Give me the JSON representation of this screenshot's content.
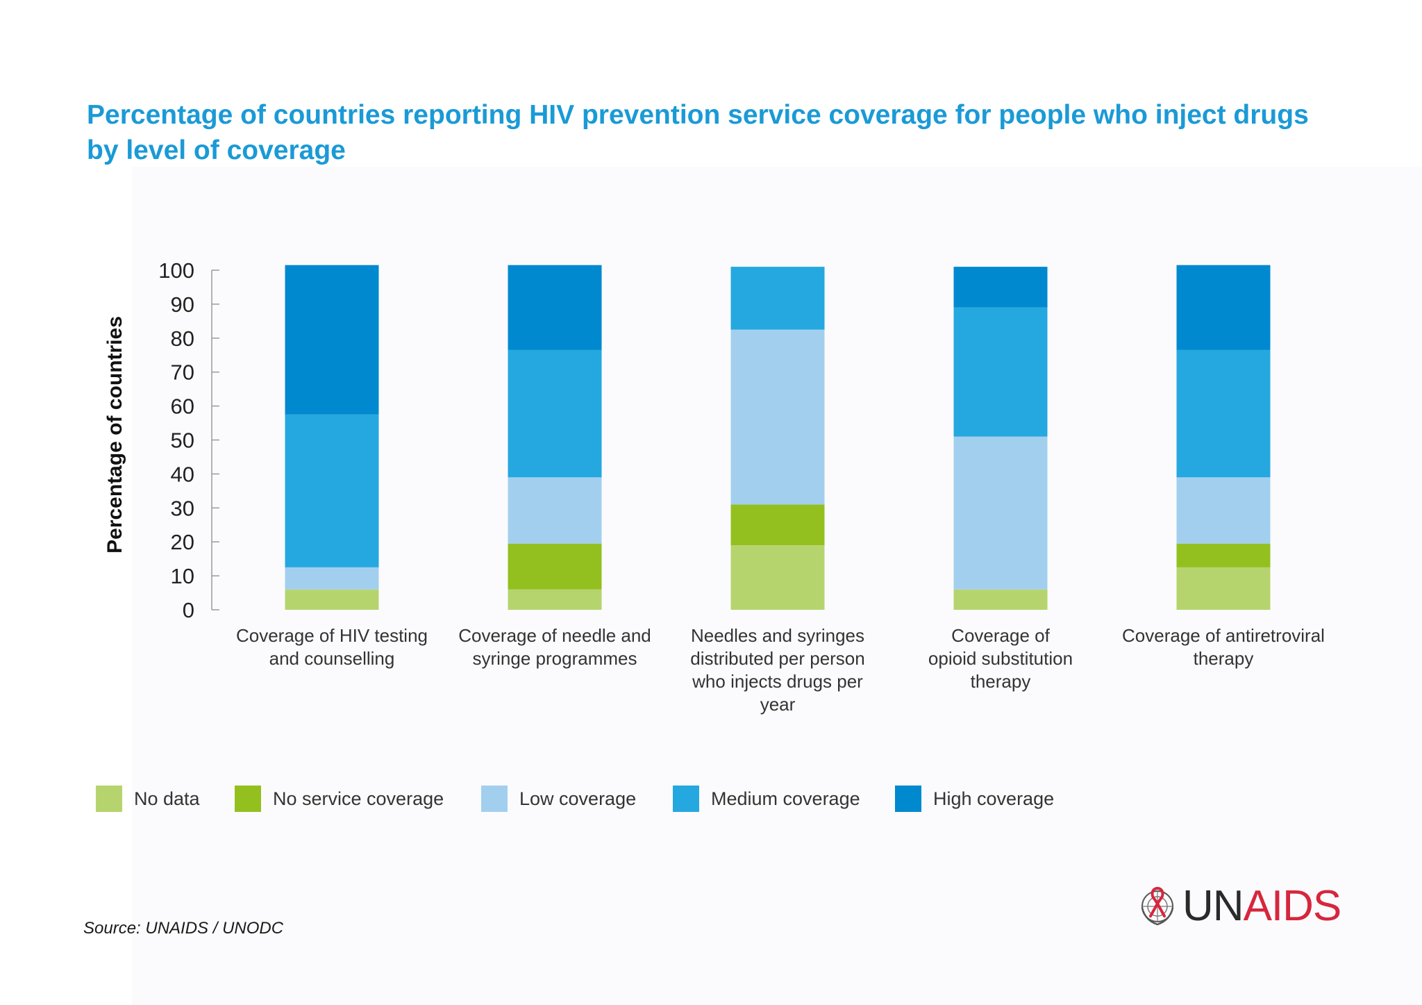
{
  "title": "Percentage of countries reporting HIV prevention service coverage for people who inject drugs by level of coverage",
  "source": "Source: UNAIDS / UNODC",
  "logo": {
    "text_un": "UN",
    "text_aids": "AIDS"
  },
  "colors": {
    "No data": "#b6d46e",
    "No service coverage": "#93c01f",
    "Low coverage": "#a3cfef",
    "Medium coverage": "#25a8df",
    "High coverage": "#0089cf"
  },
  "legend": [
    {
      "label": "No data",
      "color": "#b6d46e"
    },
    {
      "label": "No service coverage",
      "color": "#93c01f"
    },
    {
      "label": "Low coverage",
      "color": "#a3cfef"
    },
    {
      "label": "Medium coverage",
      "color": "#25a8df"
    },
    {
      "label": "High coverage",
      "color": "#0089cf"
    }
  ],
  "chart_data": {
    "type": "bar",
    "stacked": true,
    "ylabel": "Percentage of countries",
    "xlabel": "",
    "ylim": [
      0,
      100
    ],
    "yticks": [
      0,
      10,
      20,
      30,
      40,
      50,
      60,
      70,
      80,
      90,
      100
    ],
    "grid": false,
    "legend_position": "bottom",
    "categories": [
      [
        "Coverage of HIV testing",
        "and counselling"
      ],
      [
        "Coverage of needle and",
        "syringe programmes"
      ],
      [
        "Needles and syringes",
        "distributed per person",
        "who injects drugs per",
        "year"
      ],
      [
        "Coverage of",
        "opioid substitution",
        "therapy"
      ],
      [
        "Coverage of antiretroviral",
        "therapy"
      ]
    ],
    "series": [
      {
        "name": "No data",
        "values": [
          6,
          6,
          19,
          6,
          12.5
        ]
      },
      {
        "name": "No service coverage",
        "values": [
          0,
          13.5,
          12,
          0,
          7
        ]
      },
      {
        "name": "Low coverage",
        "values": [
          6.5,
          19.5,
          51.5,
          45,
          19.5
        ]
      },
      {
        "name": "Medium coverage",
        "values": [
          45,
          37.5,
          18.5,
          38,
          37.5
        ]
      },
      {
        "name": "High coverage",
        "values": [
          44,
          25,
          0,
          12,
          25
        ]
      }
    ]
  }
}
